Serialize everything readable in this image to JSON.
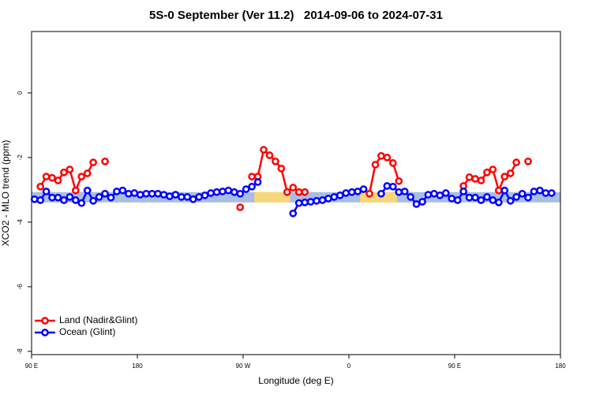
{
  "chart_data": {
    "type": "line",
    "title": "5S-0 September (Ver 11.2)   2014-09-06 to 2024-07-31",
    "xlabel": "Longitude (deg E)",
    "ylabel": "XCO2 - MLO trend (ppm)",
    "xlim": [
      90,
      540
    ],
    "ylim": [
      -8.1,
      1.9
    ],
    "xticks": [
      {
        "value": 90,
        "label": "90 E"
      },
      180,
      {
        "value": 270,
        "label": "90 W"
      },
      {
        "value": 360,
        "label": "0"
      },
      {
        "value": 450,
        "label": "90 E"
      },
      {
        "value": 540,
        "label": "180"
      }
    ],
    "yticks": [
      0,
      -2,
      -4,
      -6,
      -8
    ],
    "legend": "lower left",
    "band": {
      "ylim": [
        -3.39,
        -3.07
      ],
      "color": "#a9bfe2",
      "land_color": "#f8d67a",
      "land_xlim": [
        [
          279.5,
          310
        ],
        [
          369.5,
          401
        ]
      ]
    },
    "series": [
      {
        "name": "Land (Nadir&Glint)",
        "color": "#ff0000",
        "x": [
          97.5,
          102.5,
          107.5,
          112.5,
          117.5,
          122.5,
          127.5,
          132.5,
          137.5,
          142.5,
          147.5,
          152.5,
          157.5,
          267.5,
          272.5,
          277.5,
          282.5,
          287.5,
          292.5,
          297.5,
          302.5,
          307.5,
          312.5,
          317.5,
          322.5,
          327.5,
          377.5,
          382.5,
          387.5,
          392.5,
          397.5,
          402.5,
          407.5,
          457.5,
          462.5,
          467.5,
          472.5,
          477.5,
          482.5,
          487.5,
          492.5,
          497.5,
          502.5,
          507.5,
          512.5
        ],
        "values": [
          -2.9,
          -2.59,
          -2.63,
          -2.71,
          -2.46,
          -2.37,
          -3.02,
          -2.59,
          -2.49,
          -2.15,
          null,
          -2.12,
          null,
          -3.54,
          null,
          -2.59,
          -2.59,
          -1.76,
          -1.93,
          -2.12,
          -2.34,
          -3.07,
          -2.93,
          -3.07,
          -3.07,
          null,
          -3.12,
          -2.22,
          -1.95,
          -2.0,
          -2.17,
          -2.73,
          null,
          -2.88,
          -2.61,
          -2.66,
          -2.71,
          -2.46,
          -2.37,
          -3.02,
          -2.59,
          -2.49,
          -2.15,
          null,
          -2.12
        ]
      },
      {
        "name": "Ocean (Glint)",
        "color": "#0000ff",
        "x": [
          92.5,
          97.5,
          102.5,
          107.5,
          112.5,
          117.5,
          122.5,
          127.5,
          132.5,
          137.5,
          142.5,
          147.5,
          152.5,
          157.5,
          162.5,
          167.5,
          172.5,
          177.5,
          182.5,
          187.5,
          192.5,
          197.5,
          202.5,
          207.5,
          212.5,
          217.5,
          222.5,
          227.5,
          232.5,
          237.5,
          242.5,
          247.5,
          252.5,
          257.5,
          262.5,
          267.5,
          272.5,
          277.5,
          282.5,
          287.5,
          312.5,
          317.5,
          322.5,
          327.5,
          332.5,
          337.5,
          342.5,
          347.5,
          352.5,
          357.5,
          362.5,
          367.5,
          372.5,
          377.5,
          387.5,
          392.5,
          397.5,
          402.5,
          407.5,
          412.5,
          417.5,
          422.5,
          427.5,
          432.5,
          437.5,
          442.5,
          447.5,
          452.5,
          457.5,
          462.5,
          467.5,
          472.5,
          477.5,
          482.5,
          487.5,
          492.5,
          497.5,
          502.5,
          507.5,
          512.5,
          517.5,
          522.5,
          527.5,
          532.5
        ],
        "values": [
          -3.29,
          -3.32,
          -3.05,
          -3.24,
          -3.24,
          -3.32,
          -3.22,
          -3.32,
          -3.41,
          -3.02,
          -3.34,
          -3.22,
          -3.12,
          -3.24,
          -3.05,
          -3.02,
          -3.12,
          -3.1,
          -3.15,
          -3.12,
          -3.12,
          -3.12,
          -3.15,
          -3.2,
          -3.15,
          -3.22,
          -3.22,
          -3.29,
          -3.22,
          -3.17,
          -3.1,
          -3.07,
          -3.05,
          -3.02,
          -3.07,
          -3.12,
          -2.98,
          -2.9,
          -2.76,
          null,
          -3.73,
          -3.41,
          -3.39,
          -3.37,
          -3.34,
          -3.32,
          -3.27,
          -3.22,
          -3.17,
          -3.1,
          -3.07,
          -3.05,
          -2.98,
          null,
          -3.12,
          -2.88,
          -2.9,
          -3.07,
          -3.05,
          -3.22,
          -3.44,
          -3.37,
          -3.15,
          -3.12,
          -3.17,
          -3.1,
          -3.27,
          -3.32,
          -3.05,
          -3.24,
          -3.24,
          -3.32,
          -3.22,
          -3.32,
          -3.39,
          -3.02,
          -3.34,
          -3.22,
          -3.12,
          -3.24,
          -3.05,
          -3.02,
          -3.1,
          -3.1
        ]
      }
    ]
  }
}
